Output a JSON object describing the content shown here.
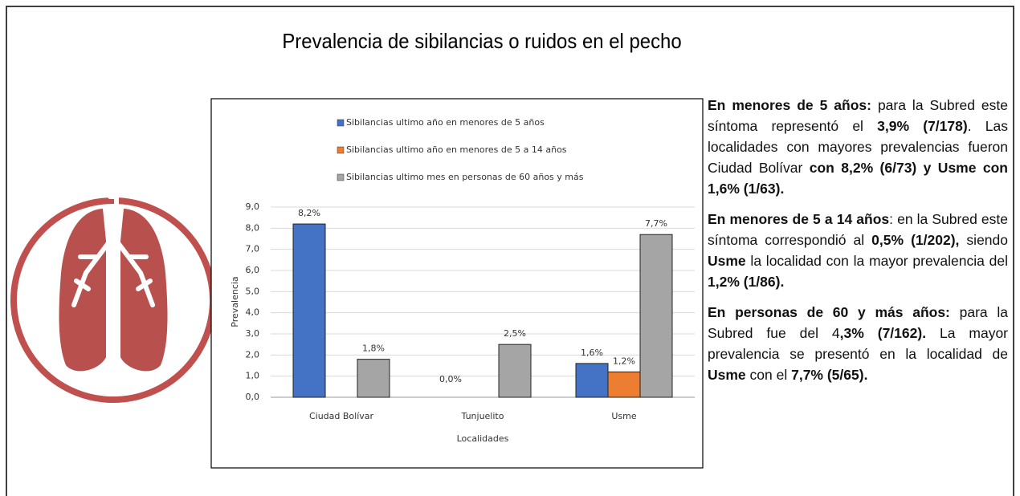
{
  "title": "Prevalencia de sibilancias o ruidos en el pecho",
  "chart_data": {
    "type": "bar",
    "categories": [
      "Ciudad Bolívar",
      "Tunjuelito",
      "Usme"
    ],
    "series": [
      {
        "name": "Sibilancias ultimo año en  menores de 5 años",
        "color": "#4472c4",
        "values": [
          8.2,
          0.0,
          1.6
        ],
        "value_labels": [
          "8,2%",
          "0,0%",
          "1,6%"
        ]
      },
      {
        "name": "Sibilancias ultimo año en  menores de 5 a 14 años",
        "color": "#ed7d31",
        "values": [
          null,
          null,
          1.2
        ],
        "value_labels": [
          null,
          null,
          "1,2%"
        ]
      },
      {
        "name": "Sibilancias ultimo mes en personas de 60 años y más",
        "color": "#a5a5a5",
        "values": [
          1.8,
          2.5,
          7.7
        ],
        "value_labels": [
          "1,8%",
          "2,5%",
          "7,7%"
        ]
      }
    ],
    "y_label": "Prevalencia",
    "x_label": "Localidades",
    "ylim": [
      0,
      9
    ],
    "yticks": [
      {
        "value": 0,
        "label": "0,0"
      },
      {
        "value": 1,
        "label": "1,0"
      },
      {
        "value": 2,
        "label": "2,0"
      },
      {
        "value": 3,
        "label": "3,0"
      },
      {
        "value": 4,
        "label": "4,0"
      },
      {
        "value": 5,
        "label": "5,0"
      },
      {
        "value": 6,
        "label": "6,0"
      },
      {
        "value": 7,
        "label": "7,0"
      },
      {
        "value": 8,
        "label": "8,0"
      },
      {
        "value": 9,
        "label": "9,0"
      }
    ],
    "grid": true
  },
  "paragraphs": [
    [
      {
        "text": "En menores de 5 años:",
        "bold": true
      },
      {
        "text": " para la Subred este síntoma representó el ",
        "bold": false
      },
      {
        "text": "3,9% (7/178)",
        "bold": true
      },
      {
        "text": ". Las localidades con mayores prevalencias fueron Ciudad Bolívar ",
        "bold": false
      },
      {
        "text": "con 8,2% (6/73) y Usme con 1,6% (1/63).",
        "bold": true
      }
    ],
    [
      {
        "text": "En menores de 5 a 14 años",
        "bold": true
      },
      {
        "text": ": en la Subred este síntoma correspondió al ",
        "bold": false
      },
      {
        "text": "0,5% (1/202),",
        "bold": true
      },
      {
        "text": " siendo ",
        "bold": false
      },
      {
        "text": "Usme",
        "bold": true
      },
      {
        "text": " la localidad con la mayor prevalencia del ",
        "bold": false
      },
      {
        "text": "1,2% (1/86).",
        "bold": true
      }
    ],
    [
      {
        "text": "En personas de 60 y más años:",
        "bold": true
      },
      {
        "text": " para la Subred fue del 4",
        "bold": false
      },
      {
        "text": ",3% (7/162).",
        "bold": true
      },
      {
        "text": " La mayor prevalencia se presentó en la localidad de ",
        "bold": false
      },
      {
        "text": "Usme",
        "bold": true
      },
      {
        "text": " con el ",
        "bold": false
      },
      {
        "text": "7,7% (5/65).",
        "bold": true
      }
    ]
  ]
}
